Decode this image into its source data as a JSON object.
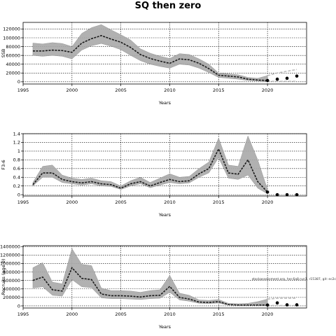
{
  "title": "SQ then zero",
  "chart_data": [
    {
      "type": "line",
      "ylabel": "SSB",
      "xlabel": "Years",
      "xlim": [
        1995,
        2024
      ],
      "ylim": [
        -5000,
        135000
      ],
      "xticks": [
        1995,
        2000,
        2005,
        2010,
        2015,
        2020
      ],
      "yticks": [
        0,
        20000,
        40000,
        60000,
        80000,
        100000,
        120000
      ],
      "ytick_labels": [
        "0",
        "20000",
        "40000",
        "60000",
        "80000",
        "100000",
        "120000"
      ],
      "grid": true,
      "years": [
        1996,
        1997,
        1998,
        1999,
        2000,
        2001,
        2002,
        2003,
        2004,
        2005,
        2006,
        2007,
        2008,
        2009,
        2010,
        2011,
        2012,
        2013,
        2014,
        2015,
        2016,
        2017,
        2018,
        2019,
        2020
      ],
      "median": [
        70000,
        70000,
        72000,
        71000,
        67000,
        88000,
        98000,
        105000,
        97000,
        90000,
        78000,
        62000,
        53000,
        47000,
        42000,
        52000,
        50000,
        42000,
        30000,
        15000,
        13000,
        11000,
        6000,
        4000,
        3000
      ],
      "lower": [
        60000,
        58000,
        60000,
        58000,
        52000,
        72000,
        82000,
        87000,
        81000,
        73000,
        60000,
        48000,
        40000,
        35000,
        31000,
        40000,
        38000,
        31000,
        21000,
        10000,
        8000,
        6000,
        3000,
        2000,
        1000
      ],
      "upper": [
        88000,
        86000,
        89000,
        87000,
        80000,
        110000,
        123000,
        130000,
        118000,
        107000,
        95000,
        75000,
        65000,
        58000,
        53000,
        64000,
        62000,
        52000,
        40000,
        20000,
        18000,
        16000,
        10000,
        8000,
        14000
      ],
      "projection_years": [
        2020,
        2021,
        2022,
        2023
      ],
      "projection_values": [
        3000,
        6000,
        8000,
        13000
      ],
      "projection_upper": [
        14000,
        20000,
        24000,
        28000
      ],
      "projection_lower": [
        1000,
        1000,
        1000,
        1000
      ]
    },
    {
      "type": "line",
      "ylabel": "F3-6",
      "xlabel": "Years",
      "xlim": [
        1995,
        2024
      ],
      "ylim": [
        -0.03,
        1.4
      ],
      "xticks": [
        1995,
        2000,
        2005,
        2010,
        2015,
        2020
      ],
      "yticks": [
        0,
        0.2,
        0.4,
        0.6,
        0.8,
        1.0,
        1.2,
        1.4
      ],
      "ytick_labels": [
        "0",
        "0.2",
        "0.4",
        "0.6",
        "0.8",
        "1",
        "1.2",
        "1.4"
      ],
      "grid": true,
      "years": [
        1996,
        1997,
        1998,
        1999,
        2000,
        2001,
        2002,
        2003,
        2004,
        2005,
        2006,
        2007,
        2008,
        2009,
        2010,
        2011,
        2012,
        2013,
        2014,
        2015,
        2016,
        2017,
        2018,
        2019,
        2020
      ],
      "median": [
        0.23,
        0.5,
        0.5,
        0.35,
        0.3,
        0.27,
        0.3,
        0.25,
        0.23,
        0.15,
        0.25,
        0.3,
        0.2,
        0.28,
        0.35,
        0.3,
        0.32,
        0.48,
        0.6,
        1.05,
        0.5,
        0.47,
        0.8,
        0.3,
        0.06
      ],
      "lower": [
        0.2,
        0.4,
        0.4,
        0.28,
        0.25,
        0.22,
        0.25,
        0.2,
        0.19,
        0.12,
        0.2,
        0.25,
        0.16,
        0.22,
        0.28,
        0.25,
        0.27,
        0.4,
        0.5,
        0.85,
        0.38,
        0.35,
        0.45,
        0.15,
        0.02
      ],
      "upper": [
        0.28,
        0.65,
        0.68,
        0.45,
        0.38,
        0.35,
        0.38,
        0.32,
        0.3,
        0.2,
        0.32,
        0.4,
        0.28,
        0.38,
        0.48,
        0.4,
        0.42,
        0.6,
        0.75,
        1.3,
        0.68,
        0.65,
        1.35,
        0.8,
        0.12
      ],
      "projection_years": [
        2020,
        2021,
        2022,
        2023
      ],
      "projection_values": [
        0.06,
        0.0,
        0.0,
        0.0
      ]
    },
    {
      "type": "line",
      "ylabel": "Recruits (age 0)",
      "xlabel": "Years",
      "xlim": [
        1995,
        2024
      ],
      "ylim": [
        -50000,
        1420000
      ],
      "xticks": [
        1995,
        2000,
        2005,
        2010,
        2015,
        2020
      ],
      "yticks": [
        0,
        200000,
        400000,
        600000,
        800000,
        1000000,
        1200000,
        1400000
      ],
      "ytick_labels": [
        "0",
        "200000",
        "400000",
        "600000",
        "800000",
        "1000000",
        "1200000",
        "1400000"
      ],
      "grid": true,
      "annotation": "stockassessment.org, her.6a8.run1, r15387, git: ec2c",
      "years": [
        1996,
        1997,
        1998,
        1999,
        2000,
        2001,
        2002,
        2003,
        2004,
        2005,
        2006,
        2007,
        2008,
        2009,
        2010,
        2011,
        2012,
        2013,
        2014,
        2015,
        2016,
        2017,
        2018,
        2019,
        2020
      ],
      "median": [
        600000,
        680000,
        380000,
        350000,
        900000,
        650000,
        620000,
        280000,
        240000,
        240000,
        230000,
        210000,
        240000,
        250000,
        460000,
        200000,
        160000,
        90000,
        80000,
        100000,
        30000,
        20000,
        20000,
        20000,
        20000
      ],
      "lower": [
        420000,
        450000,
        250000,
        230000,
        620000,
        450000,
        430000,
        190000,
        170000,
        170000,
        160000,
        150000,
        170000,
        180000,
        320000,
        140000,
        110000,
        60000,
        55000,
        65000,
        20000,
        12000,
        12000,
        12000,
        10000
      ],
      "upper": [
        900000,
        1020000,
        560000,
        520000,
        1350000,
        980000,
        950000,
        420000,
        360000,
        360000,
        350000,
        320000,
        360000,
        380000,
        720000,
        300000,
        250000,
        140000,
        130000,
        150000,
        60000,
        50000,
        60000,
        100000,
        160000
      ],
      "projection_years": [
        2020,
        2021,
        2022,
        2023
      ],
      "projection_values": [
        20000,
        70000,
        25000,
        25000
      ],
      "projection_upper": [
        160000,
        180000,
        180000,
        180000
      ],
      "projection_lower": [
        10000,
        10000,
        10000,
        10000
      ]
    }
  ]
}
